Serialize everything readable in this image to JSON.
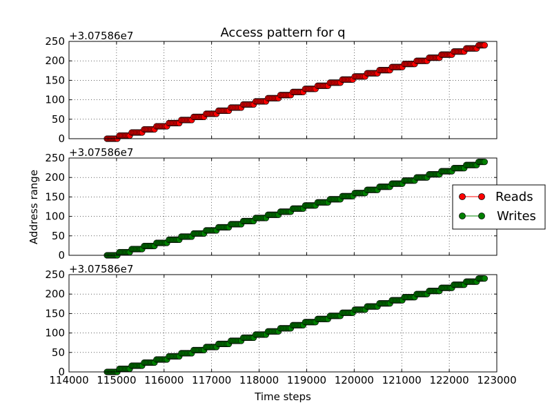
{
  "chart_data": {
    "type": "scatter",
    "title": "Access pattern for q",
    "xlabel": "Time steps",
    "ylabel": "Address range",
    "offset_label": "+3.07586e7",
    "xlim": [
      114000,
      123000
    ],
    "ylim": [
      0,
      250
    ],
    "x_ticks": [
      "114000",
      "115000",
      "116000",
      "117000",
      "118000",
      "119000",
      "120000",
      "121000",
      "122000",
      "123000"
    ],
    "y_ticks": [
      "0",
      "50",
      "100",
      "150",
      "200",
      "250"
    ],
    "grid": true,
    "legend": {
      "placement": "right",
      "entries": [
        {
          "label": "Reads",
          "color": "#ff0000"
        },
        {
          "label": "Writes",
          "color": "#008000"
        }
      ]
    },
    "pattern": {
      "x_start": 114800,
      "x_end": 122750,
      "y_start": 0,
      "y_end": 240,
      "step_height": 8,
      "points_per_step": 8
    },
    "panels": [
      {
        "name": "Reads",
        "color": "#ff0000",
        "values": "staircase 0→240 over 114800–122750"
      },
      {
        "name": "Writes",
        "color": "#008000",
        "values": "staircase 0→240 over 114800–122750"
      },
      {
        "name": "Writes",
        "color": "#008000",
        "values": "staircase 0→240 over 114800–122750"
      }
    ]
  }
}
